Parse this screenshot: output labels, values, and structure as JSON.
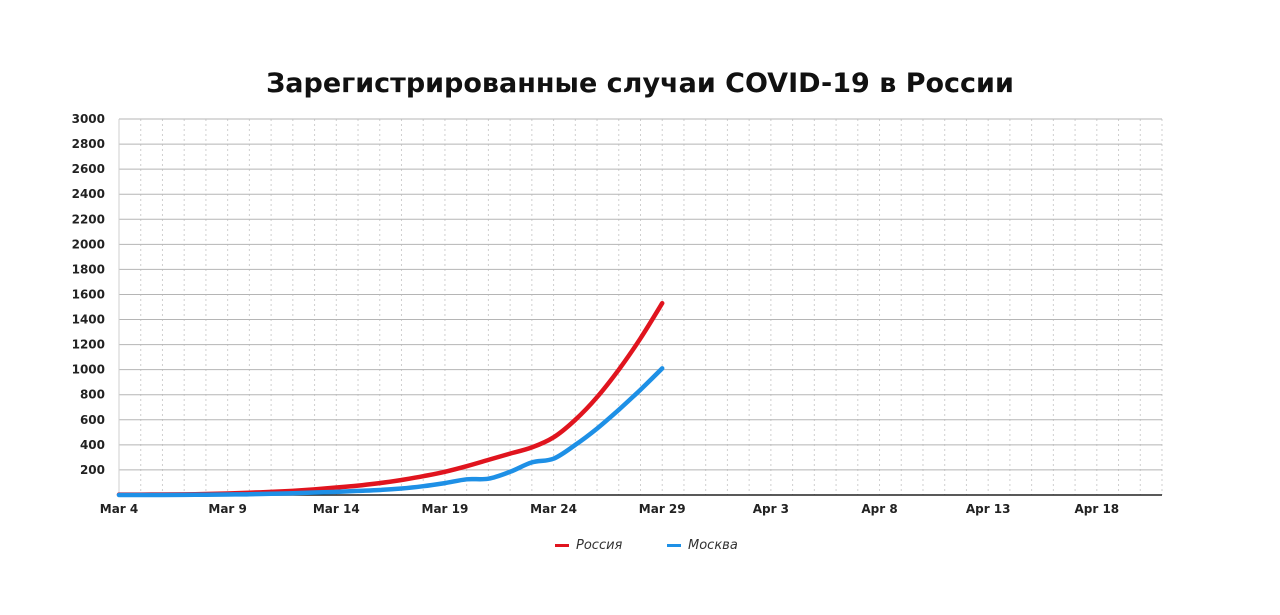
{
  "chart_data": {
    "type": "line",
    "title": "Зарегистрированные случаи COVID-19 в России",
    "xlabel": "",
    "ylabel": "",
    "x_start": "Mar 4",
    "x_end": "Apr 21",
    "x_tick_labels": [
      "Mar 4",
      "Mar 9",
      "Mar 14",
      "Mar 19",
      "Mar 24",
      "Mar 29",
      "Apr 3",
      "Apr 8",
      "Apr 13",
      "Apr 18"
    ],
    "y_ticks": [
      200,
      400,
      600,
      800,
      1000,
      1200,
      1400,
      1600,
      1800,
      2000,
      2200,
      2400,
      2600,
      2800,
      3000
    ],
    "ylim": [
      0,
      3000
    ],
    "grid": true,
    "legend_position": "bottom",
    "series": [
      {
        "name": "Россия",
        "color": "#e0141e",
        "x": [
          "Mar 4",
          "Mar 5",
          "Mar 6",
          "Mar 7",
          "Mar 8",
          "Mar 9",
          "Mar 10",
          "Mar 11",
          "Mar 12",
          "Mar 13",
          "Mar 14",
          "Mar 15",
          "Mar 16",
          "Mar 17",
          "Mar 18",
          "Mar 19",
          "Mar 20",
          "Mar 21",
          "Mar 22",
          "Mar 23",
          "Mar 24",
          "Mar 25",
          "Mar 26",
          "Mar 27",
          "Mar 28",
          "Mar 29"
        ],
        "values": [
          3,
          3,
          4,
          5,
          8,
          12,
          18,
          25,
          33,
          45,
          60,
          75,
          95,
          120,
          150,
          185,
          230,
          280,
          330,
          380,
          460,
          600,
          780,
          1000,
          1250,
          1530
        ]
      },
      {
        "name": "Москва",
        "color": "#1e90e6",
        "x": [
          "Mar 4",
          "Mar 5",
          "Mar 6",
          "Mar 7",
          "Mar 8",
          "Mar 9",
          "Mar 10",
          "Mar 11",
          "Mar 12",
          "Mar 13",
          "Mar 14",
          "Mar 15",
          "Mar 16",
          "Mar 17",
          "Mar 18",
          "Mar 19",
          "Mar 20",
          "Mar 21",
          "Mar 22",
          "Mar 23",
          "Mar 24",
          "Mar 25",
          "Mar 26",
          "Mar 27",
          "Mar 28",
          "Mar 29"
        ],
        "values": [
          0,
          0,
          0,
          1,
          2,
          4,
          6,
          10,
          14,
          20,
          25,
          33,
          40,
          52,
          70,
          95,
          125,
          130,
          185,
          260,
          290,
          400,
          530,
          680,
          840,
          1010
        ]
      }
    ]
  }
}
